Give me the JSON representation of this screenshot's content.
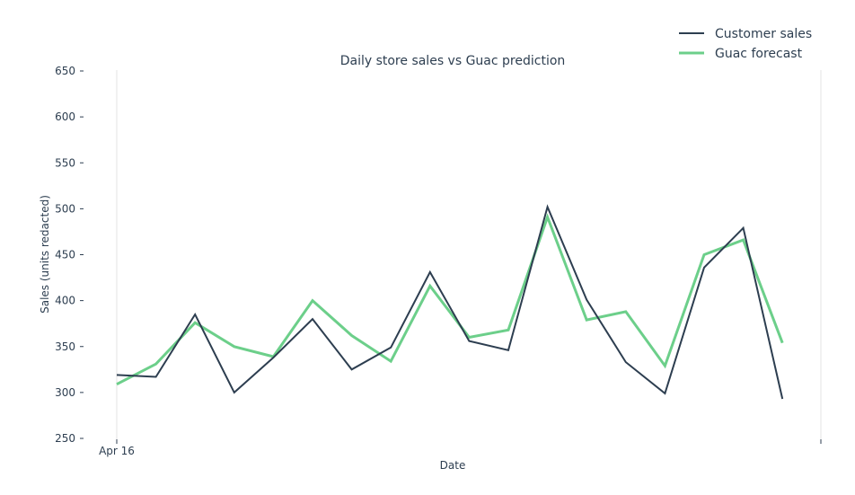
{
  "chart_data": {
    "type": "line",
    "title": "Daily store sales vs Guac prediction",
    "xlabel": "Date",
    "ylabel": "Sales (units redacted)",
    "ylim": [
      250,
      650
    ],
    "yticks": [
      250,
      300,
      350,
      400,
      450,
      500,
      550,
      600,
      650
    ],
    "xtick_labels": [
      "Apr 16"
    ],
    "grid": false,
    "legend_position": "top-right",
    "x": [
      1,
      2,
      3,
      4,
      5,
      6,
      7,
      8,
      9,
      10,
      11,
      12,
      13,
      14,
      15,
      16,
      17,
      18
    ],
    "series": [
      {
        "name": "Customer sales",
        "color": "#2d3e50",
        "values": [
          319,
          317,
          385,
          300,
          338,
          380,
          325,
          349,
          431,
          356,
          346,
          502,
          401,
          333,
          299,
          436,
          479,
          293
        ]
      },
      {
        "name": "Guac forecast",
        "color": "#6ccf8a",
        "values": [
          309,
          331,
          376,
          350,
          339,
          400,
          362,
          334,
          416,
          360,
          368,
          491,
          379,
          388,
          329,
          450,
          466,
          354
        ]
      }
    ]
  }
}
